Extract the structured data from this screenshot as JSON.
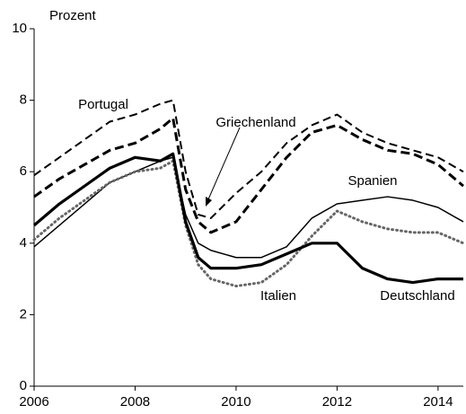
{
  "chart_data": {
    "type": "line",
    "y_label": "Prozent",
    "x": [
      2006,
      2006.5,
      2007,
      2007.5,
      2008,
      2008.5,
      2008.75,
      2009,
      2009.25,
      2009.5,
      2010,
      2010.5,
      2011,
      2011.5,
      2012,
      2012.5,
      2013,
      2013.5,
      2014,
      2014.5
    ],
    "xlim": [
      2006,
      2014.5
    ],
    "xticks": [
      2006,
      2008,
      2010,
      2012,
      2014
    ],
    "ylim": [
      0,
      10
    ],
    "yticks": [
      0,
      2,
      4,
      6,
      8,
      10
    ],
    "grid": false,
    "series": [
      {
        "name": "Portugal",
        "color": "#000000",
        "style": "dashed",
        "values": [
          5.9,
          6.4,
          6.9,
          7.4,
          7.6,
          7.9,
          8.0,
          6.0,
          4.8,
          4.7,
          5.4,
          6.0,
          6.8,
          7.3,
          7.6,
          7.1,
          6.8,
          6.6,
          6.4,
          6.0
        ]
      },
      {
        "name": "Griechenland",
        "color": "#000000",
        "style": "dashed-bold",
        "values": [
          5.3,
          5.8,
          6.2,
          6.6,
          6.8,
          7.2,
          7.5,
          5.5,
          4.6,
          4.3,
          4.6,
          5.5,
          6.4,
          7.1,
          7.3,
          6.9,
          6.6,
          6.5,
          6.2,
          5.6
        ]
      },
      {
        "name": "Spanien",
        "color": "#000000",
        "style": "solid",
        "values": [
          3.9,
          4.5,
          5.1,
          5.7,
          6.0,
          6.3,
          6.4,
          4.8,
          4.0,
          3.8,
          3.6,
          3.6,
          3.9,
          4.7,
          5.1,
          5.2,
          5.3,
          5.2,
          5.0,
          4.6
        ]
      },
      {
        "name": "Italien",
        "color": "#666666",
        "style": "dotted",
        "values": [
          4.1,
          4.7,
          5.2,
          5.7,
          6.0,
          6.1,
          6.3,
          4.5,
          3.4,
          3.0,
          2.8,
          2.9,
          3.4,
          4.2,
          4.9,
          4.6,
          4.4,
          4.3,
          4.3,
          4.0
        ]
      },
      {
        "name": "Deutschland",
        "color": "#000000",
        "style": "solid-bold",
        "values": [
          4.5,
          5.1,
          5.6,
          6.1,
          6.4,
          6.3,
          6.5,
          4.6,
          3.6,
          3.3,
          3.3,
          3.4,
          3.7,
          4.0,
          4.0,
          3.3,
          3.0,
          2.9,
          3.0,
          3.0
        ]
      }
    ]
  }
}
